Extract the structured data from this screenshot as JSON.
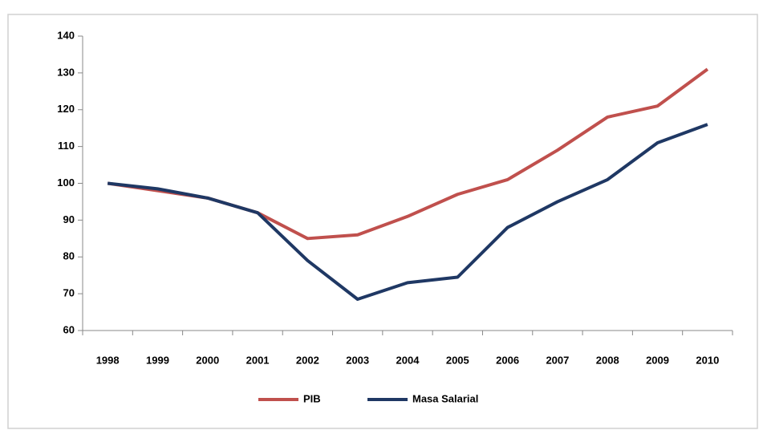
{
  "chart_data": {
    "type": "line",
    "categories": [
      "1998",
      "1999",
      "2000",
      "2001",
      "2002",
      "2003",
      "2004",
      "2005",
      "2006",
      "2007",
      "2008",
      "2009",
      "2010"
    ],
    "series": [
      {
        "name": "PIB",
        "color": "#c0504d",
        "values": [
          100,
          98,
          96,
          92,
          85,
          86,
          91,
          97,
          101,
          109,
          118,
          121,
          131
        ]
      },
      {
        "name": "Masa Salarial",
        "color": "#1f3864",
        "values": [
          100,
          98.5,
          96,
          92,
          79,
          68.5,
          73,
          74.5,
          88,
          95,
          101,
          111,
          116
        ]
      }
    ],
    "ylim": [
      60,
      140
    ],
    "yticks": [
      60,
      70,
      80,
      90,
      100,
      110,
      120,
      130,
      140
    ],
    "grid": false,
    "legend": "bottom"
  }
}
